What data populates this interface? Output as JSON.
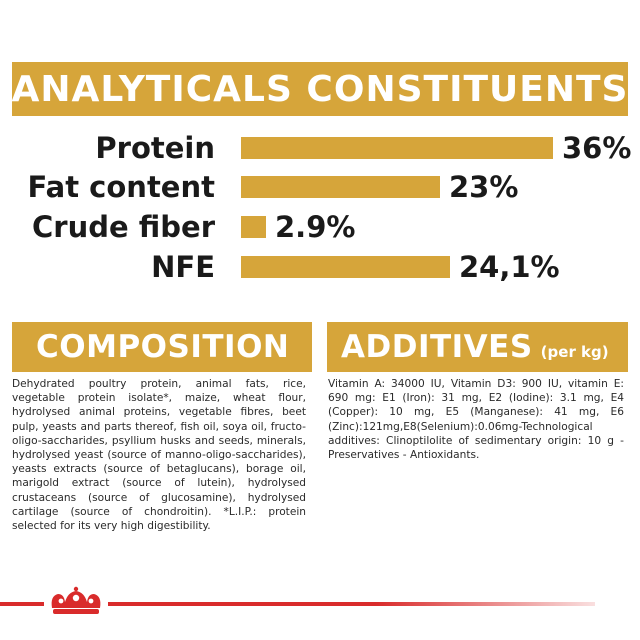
{
  "header": {
    "title": "ANALYTICALS CONSTITUENTS"
  },
  "constituents": [
    {
      "label": "Protein",
      "value_text": "36%",
      "value": 36
    },
    {
      "label": "Fat content",
      "value_text": "23%",
      "value": 23
    },
    {
      "label": "Crude fiber",
      "value_text": "2.9%",
      "value": 2.9
    },
    {
      "label": "NFE",
      "value_text": "24,1%",
      "value": 24.1
    }
  ],
  "composition": {
    "title": "COMPOSITION",
    "text": "Dehydrated poultry protein, animal fats, rice, vegetable protein isolate*, maize, wheat flour, hydrolysed animal proteins, vegetable fibres, beet pulp, yeasts and parts thereof, fish oil, soya oil, fructo-oligo-saccharides, psyllium husks and seeds, minerals, hydrolysed yeast (source of manno-oligo-saccharides), yeasts extracts (source of betaglucans), borage oil, marigold extract (source of lutein), hydrolysed crustaceans (source of glucosamine), hydrolysed cartilage (source of chondroitin). *L.I.P.: protein selected for its very high digestibility."
  },
  "additives": {
    "title": "ADDITIVES",
    "unit": "(per kg)",
    "text": "Vitamin A: 34000 IU, Vitamin D3: 900 IU, vitamin E: 690 mg: E1 (Iron): 31 mg, E2 (Iodine): 3.1 mg, E4 (Copper): 10 mg, E5 (Manganese): 41 mg, E6 (Zinc):121mg,E8(Selenium):0.06mg-Technological additives: Clinoptilolite of sedimentary origin: 10 g - Preservatives - Antioxidants."
  },
  "colors": {
    "accent": "#d6a53a",
    "brand_red": "#d92b2b"
  },
  "icons": {
    "footer_logo": "crown-icon"
  }
}
